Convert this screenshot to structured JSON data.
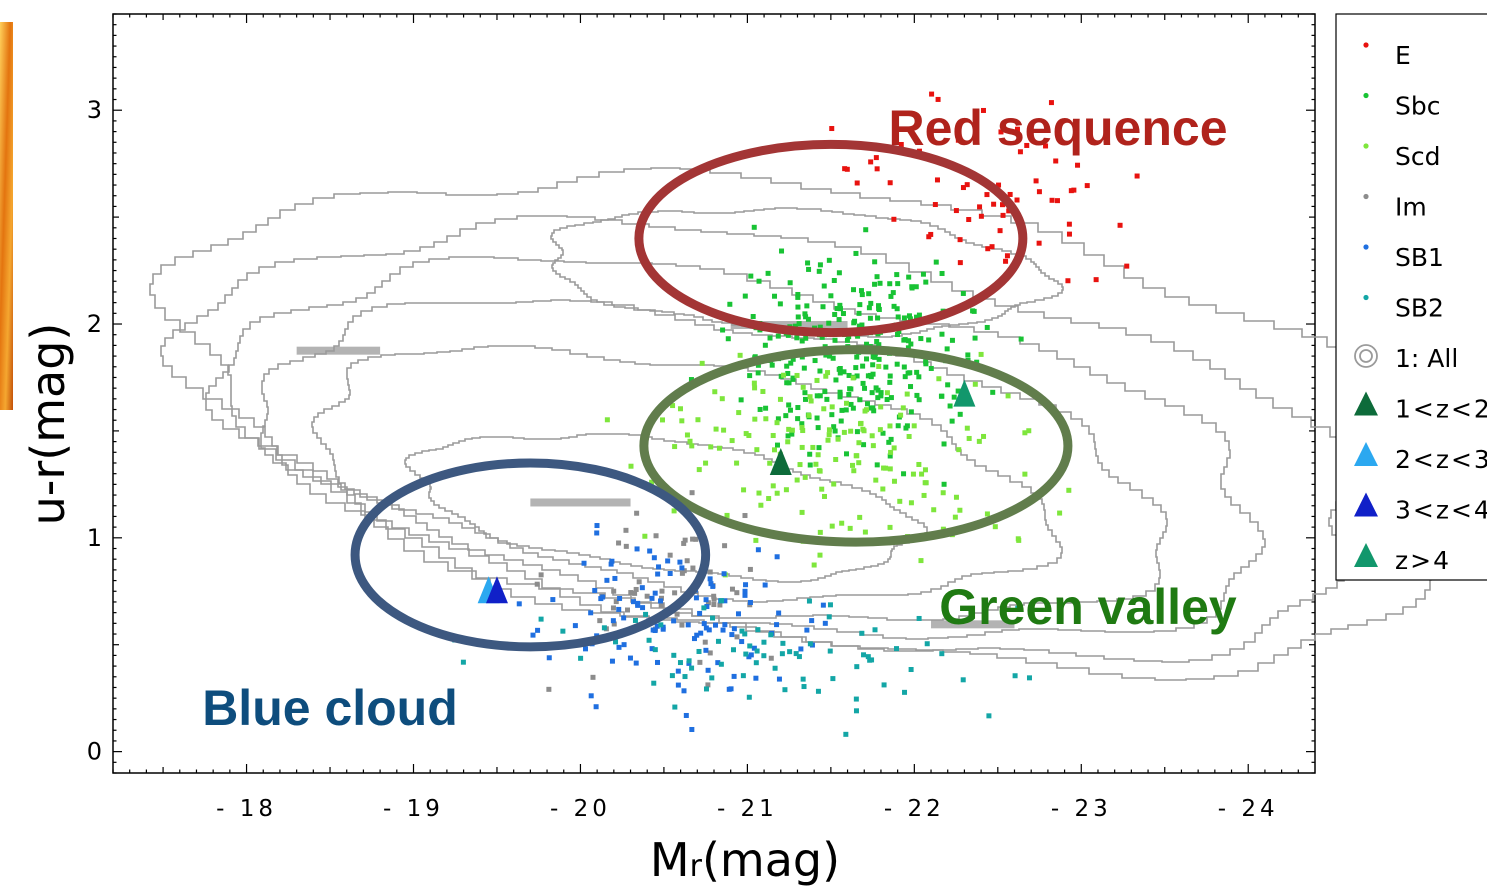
{
  "chart_data": {
    "type": "scatter",
    "xlabel": "Mr(mag)",
    "xlabel_main": "M",
    "xlabel_sub": "r",
    "xlabel_unit": "(mag)",
    "ylabel": "u-r(mag)",
    "xlim": [
      -17.2,
      -24.4
    ],
    "ylim": [
      -0.1,
      3.45
    ],
    "xticks": [
      -18,
      -19,
      -20,
      -21,
      -22,
      -23,
      -24
    ],
    "yticks": [
      0,
      1,
      2,
      3
    ],
    "grid": false,
    "legend_position": "right, outside plot",
    "legend": [
      {
        "label": "E",
        "marker": "dot",
        "color": "#e8120f"
      },
      {
        "label": "Sbc",
        "marker": "dot",
        "color": "#18c334"
      },
      {
        "label": "Scd",
        "marker": "dot",
        "color": "#7ee63c"
      },
      {
        "label": "Im",
        "marker": "dot",
        "color": "#8c8c8c"
      },
      {
        "label": "SB1",
        "marker": "dot",
        "color": "#1f6fe0"
      },
      {
        "label": "SB2",
        "marker": "dot",
        "color": "#13a6a6"
      },
      {
        "label": "1: All",
        "marker": "rings",
        "color": "#9a9a9a"
      },
      {
        "label": "1<z<2",
        "marker": "triangle",
        "color": "#0d6b3a"
      },
      {
        "label": "2<z<3",
        "marker": "triangle",
        "color": "#2ba8f0"
      },
      {
        "label": "3<z<4",
        "marker": "triangle",
        "color": "#1020c8"
      },
      {
        "label": "z>4",
        "marker": "triangle",
        "color": "#12976c"
      }
    ],
    "series": [
      {
        "name": "E",
        "color": "#e8120f",
        "cluster": {
          "x_range": [
            -20.9,
            -24.0
          ],
          "y_range": [
            1.9,
            3.4
          ],
          "count": 65
        }
      },
      {
        "name": "Sbc",
        "color": "#18c334",
        "cluster": {
          "x_range": [
            -20.4,
            -22.9
          ],
          "y_range": [
            1.05,
            2.65
          ],
          "count": 300
        }
      },
      {
        "name": "Scd",
        "color": "#7ee63c",
        "cluster": {
          "x_range": [
            -19.5,
            -23.6
          ],
          "y_range": [
            0.55,
            2.2
          ],
          "count": 170
        }
      },
      {
        "name": "Im",
        "color": "#8c8c8c",
        "cluster": {
          "x_range": [
            -19.4,
            -21.6
          ],
          "y_range": [
            0.0,
            1.5
          ],
          "count": 60
        }
      },
      {
        "name": "SB1",
        "color": "#1f6fe0",
        "cluster": {
          "x_range": [
            -19.2,
            -22.0
          ],
          "y_range": [
            0.0,
            1.25
          ],
          "count": 120
        }
      },
      {
        "name": "SB2",
        "color": "#13a6a6",
        "cluster": {
          "x_range": [
            -18.3,
            -23.6
          ],
          "y_range": [
            0.0,
            0.9
          ],
          "count": 80
        }
      }
    ],
    "markers_z": [
      {
        "label": "1<z<2",
        "x": -21.2,
        "y": 1.35,
        "color": "#0d6b3a"
      },
      {
        "label": "2<z<3",
        "x": -19.45,
        "y": 0.75,
        "color": "#2ba8f0"
      },
      {
        "label": "3<z<4",
        "x": -19.5,
        "y": 0.75,
        "color": "#1020c8"
      },
      {
        "label": "z>4",
        "x": -22.3,
        "y": 1.67,
        "color": "#12976c"
      }
    ],
    "regions": [
      {
        "label": "Red sequence",
        "color": "#a33535",
        "text_color": "#b0231c",
        "center": [
          -21.5,
          2.4
        ],
        "radius": [
          1.15,
          0.44
        ]
      },
      {
        "label": "Green valley",
        "color": "#617d4c",
        "text_color": "#1f7a12",
        "center": [
          -21.65,
          1.43
        ],
        "radius": [
          1.27,
          0.45
        ]
      },
      {
        "label": "Blue cloud",
        "color": "#3d5880",
        "text_color": "#0e4d7d",
        "center": [
          -19.7,
          0.92
        ],
        "radius": [
          1.05,
          0.43
        ]
      }
    ],
    "contours_color": "#9a9a9a"
  }
}
